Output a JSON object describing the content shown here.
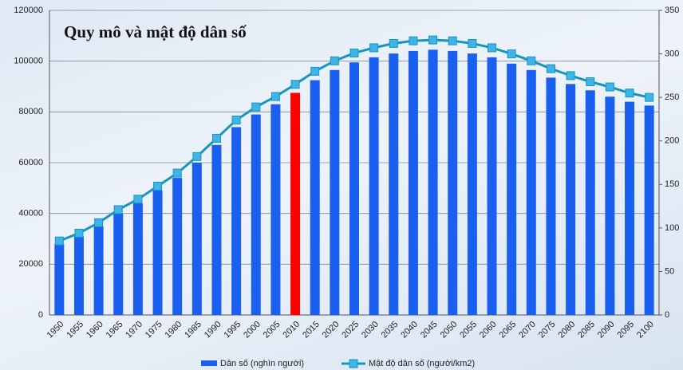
{
  "chart_data": {
    "type": "bar_line",
    "title": "Quy mô và mật độ dân số",
    "categories": [
      "1950",
      "1955",
      "1960",
      "1965",
      "1970",
      "1975",
      "1980",
      "1985",
      "1990",
      "1995",
      "2000",
      "2005",
      "2010",
      "2015",
      "2020",
      "2025",
      "2030",
      "2035",
      "2040",
      "2045",
      "2050",
      "2055",
      "2060",
      "2065",
      "2070",
      "2075",
      "2080",
      "2085",
      "2090",
      "2095",
      "2100"
    ],
    "series": [
      {
        "name": "Dân số (nghìn người)",
        "type": "bar",
        "color": "#1a5ff0",
        "values": [
          28000,
          31000,
          35000,
          40000,
          44000,
          49000,
          54000,
          60000,
          67000,
          74000,
          79000,
          83000,
          87500,
          92500,
          96500,
          99500,
          101500,
          103000,
          104000,
          104500,
          104000,
          103000,
          101500,
          99000,
          96500,
          93500,
          91000,
          88500,
          86000,
          84000,
          82500
        ]
      },
      {
        "name": "Mật độ dân số (người/km2)",
        "type": "line",
        "axis": "y2",
        "color": "#1895bd",
        "marker_color": "#3fb4e8",
        "values": [
          85,
          94,
          106,
          121,
          133,
          148,
          163,
          182,
          203,
          224,
          239,
          251,
          265,
          280,
          292,
          301,
          307,
          312,
          315,
          316,
          315,
          312,
          307,
          300,
          292,
          283,
          275,
          268,
          262,
          255,
          250
        ]
      }
    ],
    "highlight": {
      "category": "2010",
      "color": "#ff0000"
    },
    "ylim": [
      0,
      120000
    ],
    "yticks": [
      0,
      20000,
      40000,
      60000,
      80000,
      100000,
      120000
    ],
    "y2lim": [
      0,
      350
    ],
    "y2ticks": [
      0,
      50,
      100,
      150,
      200,
      250,
      300,
      350
    ],
    "grid": true,
    "legend": "bottom"
  }
}
